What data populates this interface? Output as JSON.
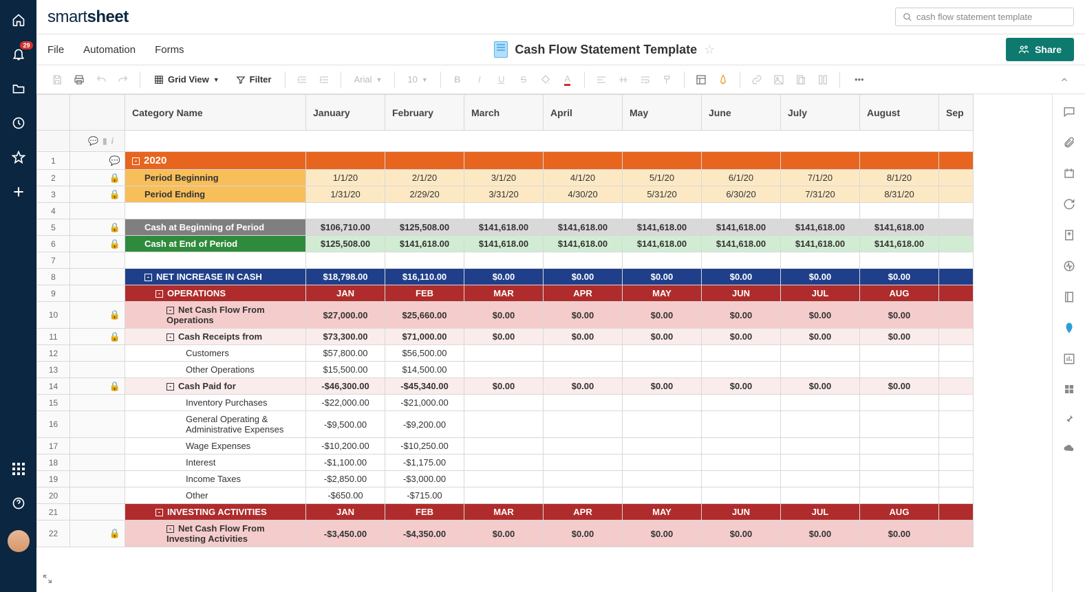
{
  "logo": {
    "part1": "smart",
    "part2": "sheet"
  },
  "search": {
    "placeholder": "cash flow statement template"
  },
  "notif_badge": "29",
  "menu": {
    "file": "File",
    "automation": "Automation",
    "forms": "Forms"
  },
  "doc": {
    "title": "Cash Flow Statement Template"
  },
  "share_label": "Share",
  "toolbar": {
    "view": "Grid View",
    "filter": "Filter",
    "font": "Arial",
    "size": "10"
  },
  "columns": {
    "category": "Category Name",
    "months": [
      "January",
      "February",
      "March",
      "April",
      "May",
      "June",
      "July",
      "August",
      "Sep"
    ]
  },
  "rows": [
    {
      "n": 1,
      "style": "orange",
      "cat": "2020",
      "exp": "-",
      "indent": 0,
      "vals": [
        "",
        "",
        "",
        "",
        "",
        "",
        "",
        "",
        ""
      ],
      "comment": true
    },
    {
      "n": 2,
      "style": "amber",
      "cat": "Period Beginning",
      "indent": 1,
      "lock": true,
      "vals": [
        "1/1/20",
        "2/1/20",
        "3/1/20",
        "4/1/20",
        "5/1/20",
        "6/1/20",
        "7/1/20",
        "8/1/20",
        ""
      ]
    },
    {
      "n": 3,
      "style": "amber",
      "cat": "Period Ending",
      "indent": 1,
      "lock": true,
      "vals": [
        "1/31/20",
        "2/29/20",
        "3/31/20",
        "4/30/20",
        "5/31/20",
        "6/30/20",
        "7/31/20",
        "8/31/20",
        ""
      ]
    },
    {
      "n": 4,
      "style": "white",
      "cat": "",
      "vals": [
        "",
        "",
        "",
        "",
        "",
        "",
        "",
        "",
        ""
      ]
    },
    {
      "n": 5,
      "style": "gray",
      "cat": "Cash at Beginning of Period",
      "indent": 1,
      "lock": true,
      "vals": [
        "$106,710.00",
        "$125,508.00",
        "$141,618.00",
        "$141,618.00",
        "$141,618.00",
        "$141,618.00",
        "$141,618.00",
        "$141,618.00",
        ""
      ]
    },
    {
      "n": 6,
      "style": "green",
      "cat": "Cash at End of Period",
      "indent": 1,
      "lock": true,
      "vals": [
        "$125,508.00",
        "$141,618.00",
        "$141,618.00",
        "$141,618.00",
        "$141,618.00",
        "$141,618.00",
        "$141,618.00",
        "$141,618.00",
        ""
      ]
    },
    {
      "n": 7,
      "style": "white",
      "cat": "",
      "vals": [
        "",
        "",
        "",
        "",
        "",
        "",
        "",
        "",
        ""
      ]
    },
    {
      "n": 8,
      "style": "navy",
      "cat": "NET INCREASE IN CASH",
      "exp": "-",
      "indent": 1,
      "vals": [
        "$18,798.00",
        "$16,110.00",
        "$0.00",
        "$0.00",
        "$0.00",
        "$0.00",
        "$0.00",
        "$0.00",
        ""
      ]
    },
    {
      "n": 9,
      "style": "red",
      "cat": "OPERATIONS",
      "exp": "-",
      "indent": 2,
      "vals": [
        "JAN",
        "FEB",
        "MAR",
        "APR",
        "MAY",
        "JUN",
        "JUL",
        "AUG",
        ""
      ]
    },
    {
      "n": 10,
      "style": "pink",
      "cat": "Net Cash Flow From Operations",
      "exp": "-",
      "indent": 3,
      "lock": true,
      "tall": true,
      "vals": [
        "$27,000.00",
        "$25,660.00",
        "$0.00",
        "$0.00",
        "$0.00",
        "$0.00",
        "$0.00",
        "$0.00",
        ""
      ]
    },
    {
      "n": 11,
      "style": "lpink",
      "cat": "Cash Receipts from",
      "exp": "-",
      "indent": 3,
      "lock": true,
      "vals": [
        "$73,300.00",
        "$71,000.00",
        "$0.00",
        "$0.00",
        "$0.00",
        "$0.00",
        "$0.00",
        "$0.00",
        ""
      ]
    },
    {
      "n": 12,
      "style": "white",
      "cat": "Customers",
      "indent": 4,
      "vals": [
        "$57,800.00",
        "$56,500.00",
        "",
        "",
        "",
        "",
        "",
        "",
        ""
      ]
    },
    {
      "n": 13,
      "style": "white",
      "cat": "Other Operations",
      "indent": 4,
      "vals": [
        "$15,500.00",
        "$14,500.00",
        "",
        "",
        "",
        "",
        "",
        "",
        ""
      ]
    },
    {
      "n": 14,
      "style": "lpink",
      "cat": "Cash Paid for",
      "exp": "-",
      "indent": 3,
      "lock": true,
      "vals": [
        "-$46,300.00",
        "-$45,340.00",
        "$0.00",
        "$0.00",
        "$0.00",
        "$0.00",
        "$0.00",
        "$0.00",
        ""
      ]
    },
    {
      "n": 15,
      "style": "white",
      "cat": "Inventory Purchases",
      "indent": 4,
      "vals": [
        "-$22,000.00",
        "-$21,000.00",
        "",
        "",
        "",
        "",
        "",
        "",
        ""
      ]
    },
    {
      "n": 16,
      "style": "white",
      "cat": "General Operating & Administrative Expenses",
      "indent": 4,
      "tall": true,
      "vals": [
        "-$9,500.00",
        "-$9,200.00",
        "",
        "",
        "",
        "",
        "",
        "",
        ""
      ]
    },
    {
      "n": 17,
      "style": "white",
      "cat": "Wage Expenses",
      "indent": 4,
      "vals": [
        "-$10,200.00",
        "-$10,250.00",
        "",
        "",
        "",
        "",
        "",
        "",
        ""
      ]
    },
    {
      "n": 18,
      "style": "white",
      "cat": "Interest",
      "indent": 4,
      "vals": [
        "-$1,100.00",
        "-$1,175.00",
        "",
        "",
        "",
        "",
        "",
        "",
        ""
      ]
    },
    {
      "n": 19,
      "style": "white",
      "cat": "Income Taxes",
      "indent": 4,
      "vals": [
        "-$2,850.00",
        "-$3,000.00",
        "",
        "",
        "",
        "",
        "",
        "",
        ""
      ]
    },
    {
      "n": 20,
      "style": "white",
      "cat": "Other",
      "indent": 4,
      "vals": [
        "-$650.00",
        "-$715.00",
        "",
        "",
        "",
        "",
        "",
        "",
        ""
      ]
    },
    {
      "n": 21,
      "style": "red",
      "cat": "INVESTING ACTIVITIES",
      "exp": "-",
      "indent": 2,
      "vals": [
        "JAN",
        "FEB",
        "MAR",
        "APR",
        "MAY",
        "JUN",
        "JUL",
        "AUG",
        ""
      ]
    },
    {
      "n": 22,
      "style": "pink",
      "cat": "Net Cash Flow From Investing Activities",
      "exp": "-",
      "indent": 3,
      "lock": true,
      "tall": true,
      "vals": [
        "-$3,450.00",
        "-$4,350.00",
        "$0.00",
        "$0.00",
        "$0.00",
        "$0.00",
        "$0.00",
        "$0.00",
        ""
      ]
    }
  ]
}
